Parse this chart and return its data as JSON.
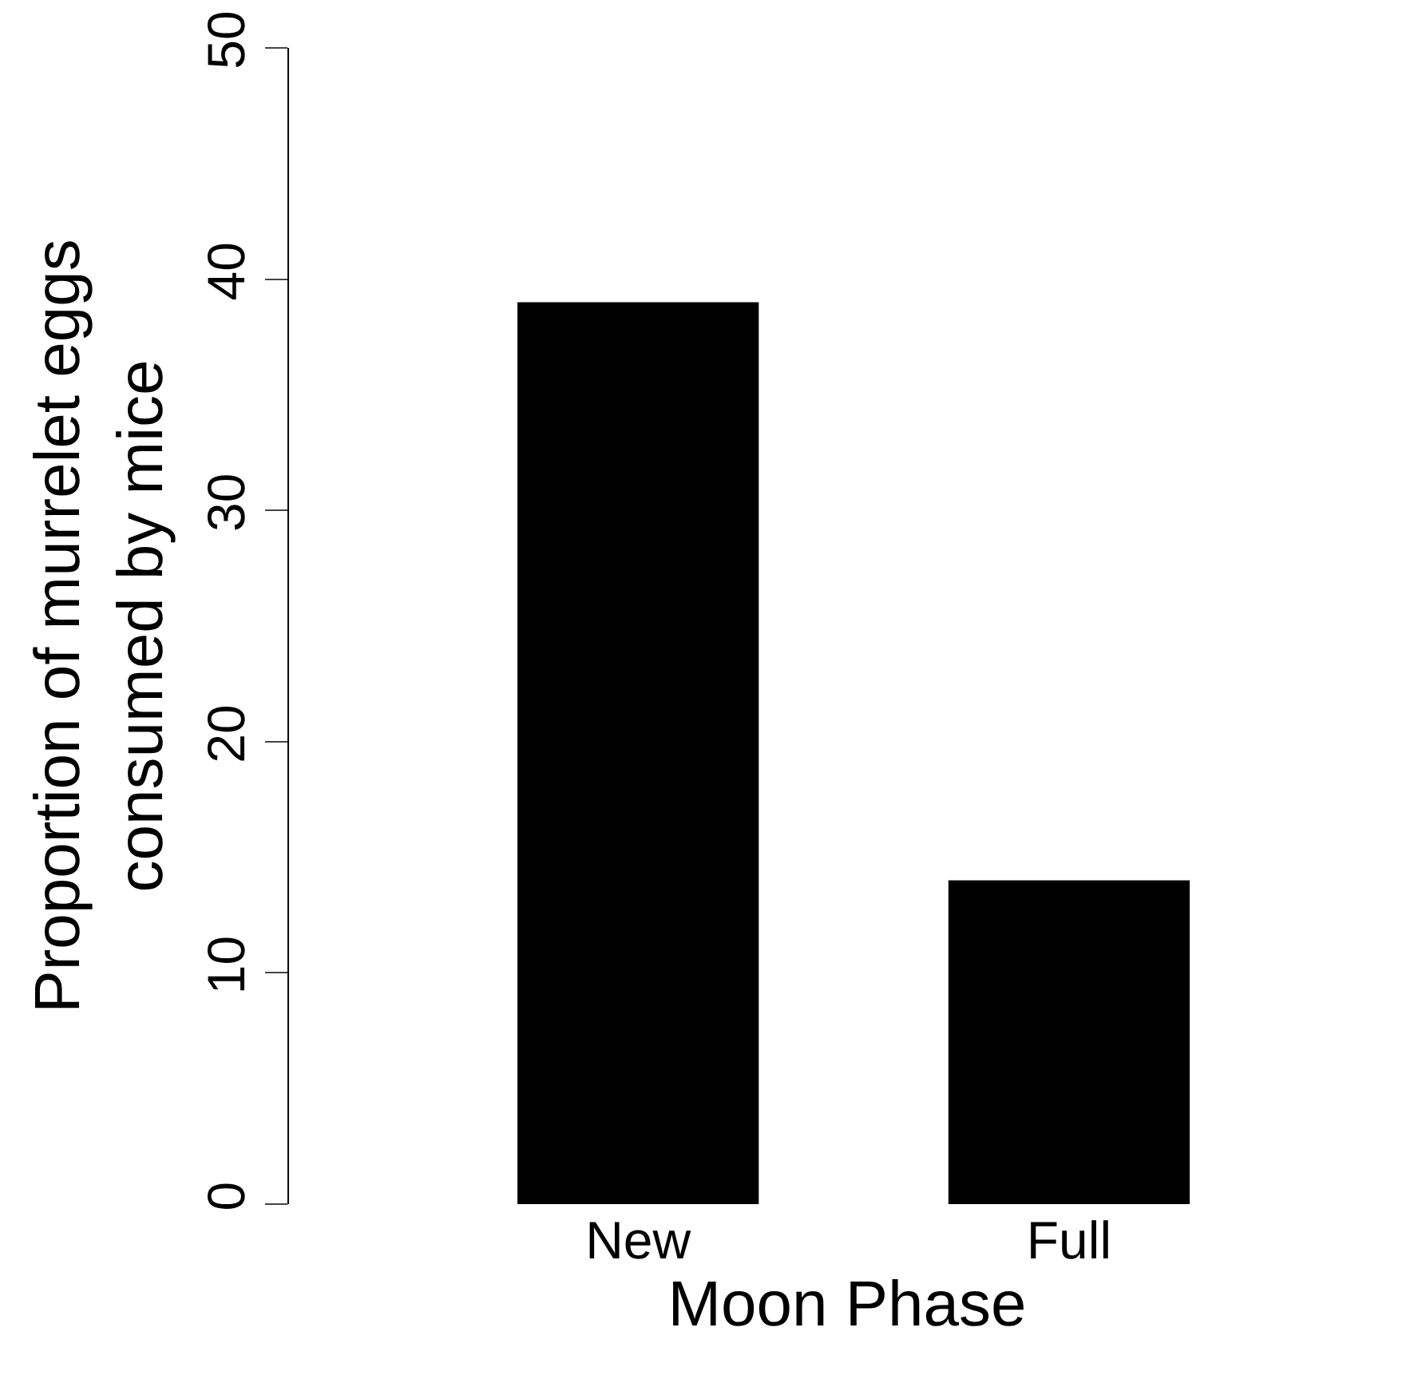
{
  "chart_data": {
    "type": "bar",
    "categories": [
      "New",
      "Full"
    ],
    "values": [
      39,
      14
    ],
    "color": "#000000",
    "xlabel": "Moon Phase",
    "ylabel": "Proportion of murrelet eggs\nconsumed by mice",
    "ylim": [
      0,
      50
    ],
    "yticks": [
      0,
      10,
      20,
      30,
      40,
      50
    ],
    "legend": false
  }
}
